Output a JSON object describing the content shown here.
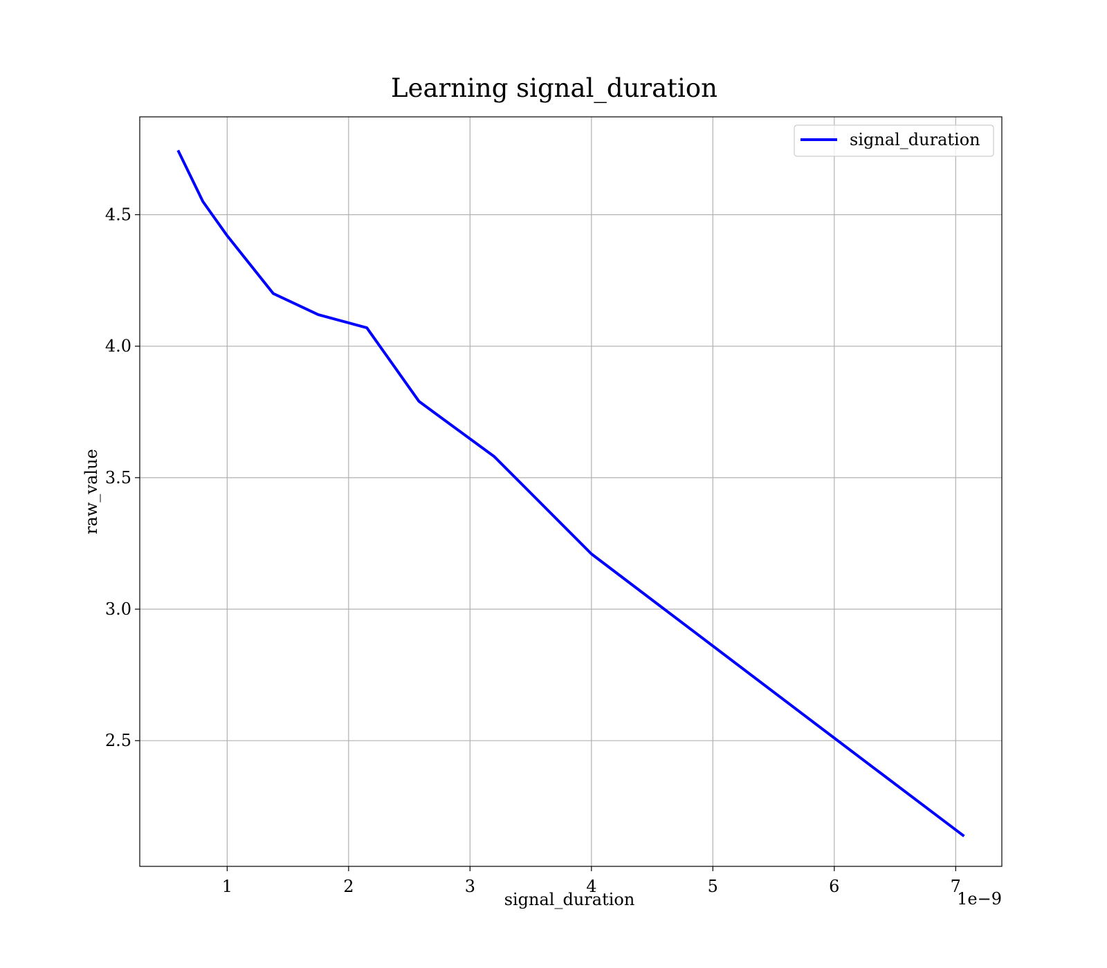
{
  "chart_data": {
    "type": "line",
    "title": "Learning signal_duration",
    "xlabel": "signal_duration",
    "ylabel": "raw_value",
    "x_offset_text": "1e−9",
    "xlim": [
      2.8e-10,
      7.38e-09
    ],
    "ylim": [
      2.022,
      4.872
    ],
    "x_ticks": [
      1e-09,
      2e-09,
      3e-09,
      4e-09,
      5e-09,
      6e-09,
      7e-09
    ],
    "x_tick_labels": [
      "1",
      "2",
      "3",
      "4",
      "5",
      "6",
      "7"
    ],
    "y_ticks": [
      2.5,
      3.0,
      3.5,
      4.0,
      4.5
    ],
    "y_tick_labels": [
      "2.5",
      "3.0",
      "3.5",
      "4.0",
      "4.5"
    ],
    "grid": true,
    "legend": {
      "position": "top-right",
      "entries": [
        "signal_duration"
      ]
    },
    "series": [
      {
        "name": "signal_duration",
        "color": "#0000ff",
        "x": [
          6e-10,
          8e-10,
          1e-09,
          1.38e-09,
          1.75e-09,
          2.15e-09,
          2.58e-09,
          3.2e-09,
          4e-09,
          5e-09,
          6e-09,
          7.06e-09
        ],
        "y": [
          4.74,
          4.55,
          4.42,
          4.2,
          4.12,
          4.07,
          3.79,
          3.58,
          3.21,
          2.86,
          2.51,
          2.14
        ]
      }
    ]
  }
}
